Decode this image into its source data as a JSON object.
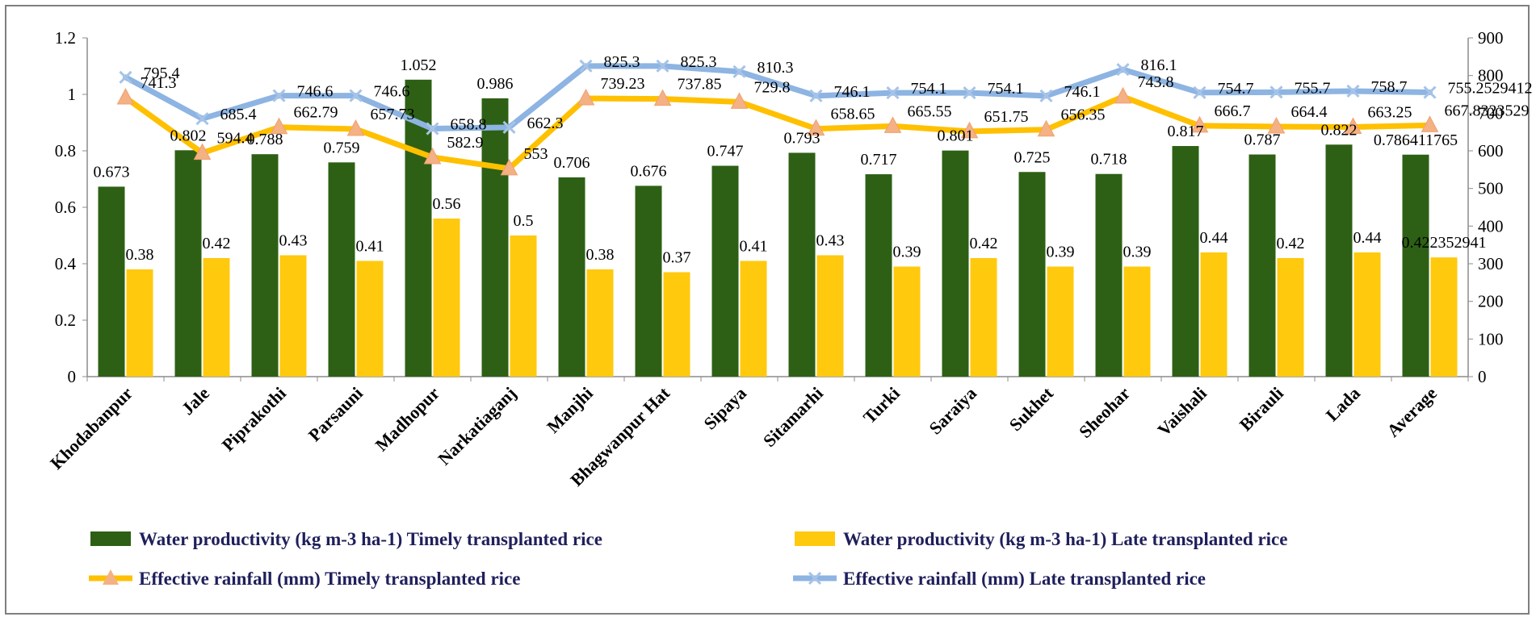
{
  "chart_data": {
    "type": "bar+line",
    "categories": [
      "Khodabanpur",
      "Jale",
      "Piprakothi",
      "Parsauni",
      "Madhopur",
      "Narkatiaganj",
      "Manjhi",
      "Bhagwanpur Hat",
      "Sipaya",
      "Sitamarhi",
      "Turki",
      "Saraiya",
      "Sukhet",
      "Sheohar",
      "Vaishali",
      "Birauli",
      "Lada",
      "Average"
    ],
    "series": [
      {
        "name": "Water productivity (kg m-3 ha-1) Timely transplanted rice",
        "kind": "bar",
        "axis": "left",
        "color": "#2d6014",
        "values": [
          0.673,
          0.802,
          0.788,
          0.759,
          1.052,
          0.986,
          0.706,
          0.676,
          0.747,
          0.793,
          0.717,
          0.801,
          0.725,
          0.718,
          0.817,
          0.787,
          0.822,
          0.786411765
        ],
        "labels": [
          "0.673",
          "0.802",
          "0.788",
          "0.759",
          "1.052",
          "0.986",
          "0.706",
          "0.676",
          "0.747",
          "0.793",
          "0.717",
          "0.801",
          "0.725",
          "0.718",
          "0.817",
          "0.787",
          "0.822",
          "0.786411765"
        ]
      },
      {
        "name": "Water productivity (kg m-3 ha-1) Late transplanted rice",
        "kind": "bar",
        "axis": "left",
        "color": "#ffc90e",
        "values": [
          0.38,
          0.42,
          0.43,
          0.41,
          0.56,
          0.5,
          0.38,
          0.37,
          0.41,
          0.43,
          0.39,
          0.42,
          0.39,
          0.39,
          0.44,
          0.42,
          0.44,
          0.422352941
        ],
        "labels": [
          "0.38",
          "0.42",
          "0.43",
          "0.41",
          "0.56",
          "0.5",
          "0.38",
          "0.37",
          "0.41",
          "0.43",
          "0.39",
          "0.42",
          "0.39",
          "0.39",
          "0.44",
          "0.42",
          "0.44",
          "0.422352941"
        ]
      },
      {
        "name": "Effective rainfall (mm) Timely transplanted rice",
        "kind": "line",
        "axis": "right",
        "color": "#ffc000",
        "marker": "triangle",
        "marker_color": "#f4b183",
        "values": [
          741.3,
          594.4,
          662.79,
          657.73,
          582.9,
          553,
          739.23,
          737.85,
          729.8,
          658.65,
          665.55,
          651.75,
          656.35,
          743.8,
          666.7,
          664.4,
          663.25,
          667.8323529
        ],
        "labels": [
          "741.3",
          "594.4",
          "662.79",
          "657.73",
          "582.9",
          "553",
          "739.23",
          "737.85",
          "729.8",
          "658.65",
          "665.55",
          "651.75",
          "656.35",
          "743.8",
          "666.7",
          "664.4",
          "663.25",
          "667.8323529"
        ]
      },
      {
        "name": "Effective rainfall (mm) Late transplanted rice",
        "kind": "line",
        "axis": "right",
        "color": "#8db4e2",
        "marker": "x",
        "values": [
          795.4,
          685.4,
          746.6,
          746.6,
          658.8,
          662.3,
          825.3,
          825.3,
          810.3,
          746.1,
          754.1,
          754.1,
          746.1,
          816.1,
          754.7,
          755.7,
          758.7,
          755.2529412
        ],
        "labels": [
          "795.4",
          "685.4",
          "746.6",
          "746.6",
          "658.8",
          "662.3",
          "825.3",
          "825.3",
          "810.3",
          "746.1",
          "754.1",
          "754.1",
          "746.1",
          "816.1",
          "754.7",
          "755.7",
          "758.7",
          "755.2529412"
        ]
      }
    ],
    "left_axis": {
      "min": 0,
      "max": 1.2,
      "ticks": [
        "0",
        "0.2",
        "0.4",
        "0.6",
        "0.8",
        "1",
        "1.2"
      ]
    },
    "right_axis": {
      "min": 0,
      "max": 900,
      "ticks": [
        "0",
        "100",
        "200",
        "300",
        "400",
        "500",
        "600",
        "700",
        "800",
        "900"
      ]
    },
    "legend_position": "bottom"
  }
}
